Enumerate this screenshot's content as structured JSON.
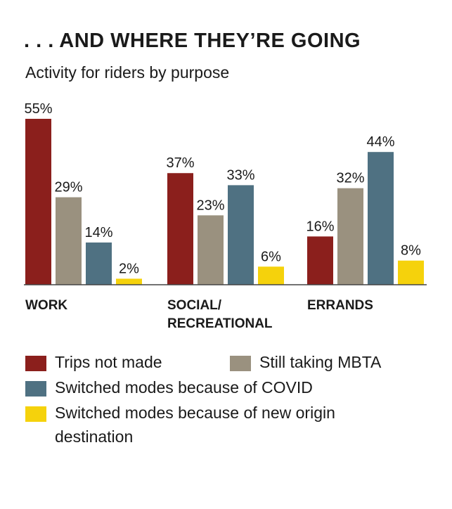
{
  "title": ". . . AND WHERE THEY’RE GOING",
  "subtitle": "Activity for riders by purpose",
  "chart_data": {
    "type": "bar",
    "title": ". . . AND WHERE THEY’RE GOING",
    "subtitle": "Activity for riders by purpose",
    "categories": [
      "WORK",
      "SOCIAL/\nRECREATIONAL",
      "ERRANDS"
    ],
    "category_lines": [
      [
        "WORK"
      ],
      [
        "SOCIAL/",
        "RECREATIONAL"
      ],
      [
        "ERRANDS"
      ]
    ],
    "series": [
      {
        "name": "Trips not made",
        "color": "#8b1f1c",
        "values": [
          55,
          37,
          16
        ]
      },
      {
        "name": "Still taking MBTA",
        "color": "#9a917f",
        "values": [
          29,
          23,
          32
        ]
      },
      {
        "name": "Switched modes because of COVID",
        "color": "#4f7182",
        "values": [
          14,
          33,
          44
        ]
      },
      {
        "name": "Switched modes because of new origin destination",
        "color": "#f5d20c",
        "values": [
          2,
          6,
          8
        ]
      }
    ],
    "value_suffix": "%",
    "ylim": [
      0,
      55
    ],
    "legend": "bottom",
    "xlabel": "",
    "ylabel": ""
  },
  "legend": {
    "items": [
      {
        "label": "Trips not made",
        "color": "#8b1f1c"
      },
      {
        "label": "Still taking MBTA",
        "color": "#9a917f"
      },
      {
        "label": "Switched modes because of COVID",
        "color": "#4f7182"
      },
      {
        "label": "Switched modes because of new origin destination",
        "color": "#f5d20c"
      }
    ]
  }
}
